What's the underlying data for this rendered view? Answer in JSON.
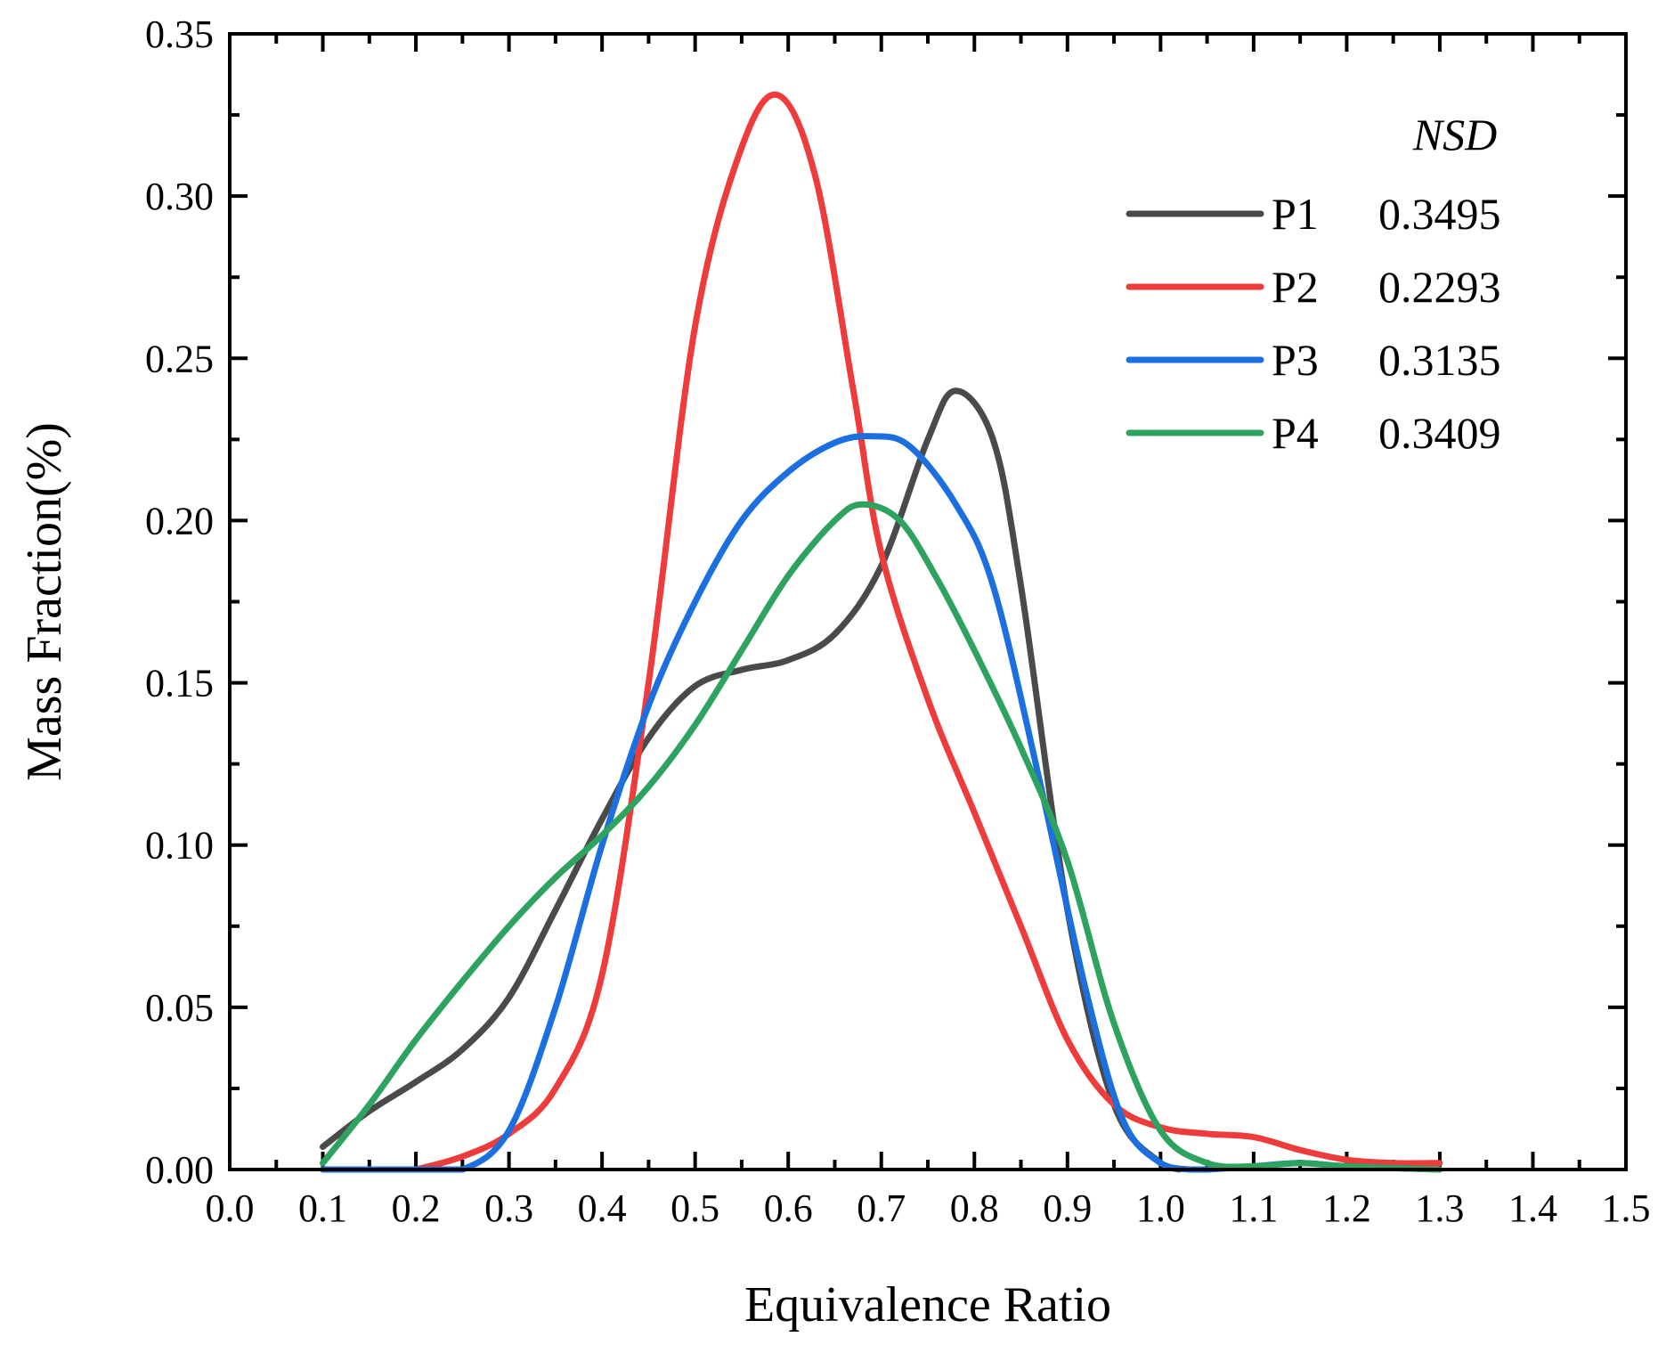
{
  "chart_data": {
    "type": "line",
    "title": "",
    "xlabel": "Equivalence Ratio",
    "ylabel": "Mass Fraction(%)",
    "xlim": [
      0.0,
      1.5
    ],
    "ylim": [
      0.0,
      0.35
    ],
    "x_ticks": [
      0.0,
      0.1,
      0.2,
      0.3,
      0.4,
      0.5,
      0.6,
      0.7,
      0.8,
      0.9,
      1.0,
      1.1,
      1.2,
      1.3,
      1.4,
      1.5
    ],
    "x_tick_labels": [
      "0.0",
      "0.1",
      "0.2",
      "0.3",
      "0.4",
      "0.5",
      "0.6",
      "0.7",
      "0.8",
      "0.9",
      "1.0",
      "1.1",
      "1.2",
      "1.3",
      "1.4",
      "1.5"
    ],
    "y_ticks": [
      0.0,
      0.05,
      0.1,
      0.15,
      0.2,
      0.25,
      0.3,
      0.35
    ],
    "y_tick_labels": [
      "0.00",
      "0.05",
      "0.10",
      "0.15",
      "0.20",
      "0.25",
      "0.30",
      "0.35"
    ],
    "grid": false,
    "legend_position": "top-right",
    "legend_header": "NSD",
    "series": [
      {
        "name": "P1",
        "nsd": "0.3495",
        "color": "#4a4a4a",
        "x": [
          0.1,
          0.15,
          0.2,
          0.25,
          0.3,
          0.35,
          0.4,
          0.45,
          0.5,
          0.55,
          0.6,
          0.65,
          0.7,
          0.75,
          0.78,
          0.82,
          0.85,
          0.9,
          0.95,
          1.0,
          1.02
        ],
        "y": [
          0.007,
          0.018,
          0.027,
          0.037,
          0.053,
          0.08,
          0.108,
          0.133,
          0.149,
          0.154,
          0.157,
          0.165,
          0.186,
          0.225,
          0.24,
          0.225,
          0.18,
          0.08,
          0.02,
          0.002,
          0.0
        ]
      },
      {
        "name": "P2",
        "nsd": "0.2293",
        "color": "#ee3b3b",
        "x": [
          0.2,
          0.25,
          0.3,
          0.35,
          0.4,
          0.45,
          0.5,
          0.55,
          0.59,
          0.63,
          0.67,
          0.7,
          0.75,
          0.8,
          0.85,
          0.9,
          0.95,
          1.0,
          1.05,
          1.1,
          1.15,
          1.2,
          1.25,
          1.3
        ],
        "y": [
          0.0,
          0.004,
          0.011,
          0.025,
          0.06,
          0.15,
          0.26,
          0.315,
          0.331,
          0.305,
          0.24,
          0.19,
          0.145,
          0.11,
          0.075,
          0.04,
          0.02,
          0.013,
          0.011,
          0.01,
          0.006,
          0.003,
          0.002,
          0.002
        ]
      },
      {
        "name": "P3",
        "nsd": "0.3135",
        "color": "#1c6fe0",
        "x": [
          0.1,
          0.2,
          0.25,
          0.3,
          0.35,
          0.4,
          0.45,
          0.5,
          0.55,
          0.6,
          0.65,
          0.69,
          0.73,
          0.78,
          0.82,
          0.87,
          0.92,
          0.96,
          1.0,
          1.03,
          1.05,
          1.1,
          1.15,
          1.2,
          1.3
        ],
        "y": [
          0.0,
          0.0,
          0.0,
          0.012,
          0.05,
          0.1,
          0.143,
          0.175,
          0.2,
          0.215,
          0.224,
          0.226,
          0.223,
          0.205,
          0.18,
          0.12,
          0.055,
          0.015,
          0.002,
          0.0,
          0.0,
          0.001,
          0.002,
          0.001,
          0.0
        ]
      },
      {
        "name": "P4",
        "nsd": "0.3409",
        "color": "#2ea35f",
        "x": [
          0.1,
          0.15,
          0.2,
          0.25,
          0.3,
          0.35,
          0.4,
          0.45,
          0.5,
          0.55,
          0.6,
          0.65,
          0.68,
          0.72,
          0.76,
          0.8,
          0.85,
          0.9,
          0.95,
          1.0,
          1.05,
          1.1,
          1.15,
          1.2,
          1.3
        ],
        "y": [
          0.002,
          0.02,
          0.04,
          0.058,
          0.075,
          0.09,
          0.103,
          0.118,
          0.137,
          0.16,
          0.183,
          0.2,
          0.205,
          0.2,
          0.182,
          0.16,
          0.13,
          0.095,
          0.045,
          0.012,
          0.002,
          0.001,
          0.002,
          0.001,
          0.0
        ]
      }
    ]
  }
}
